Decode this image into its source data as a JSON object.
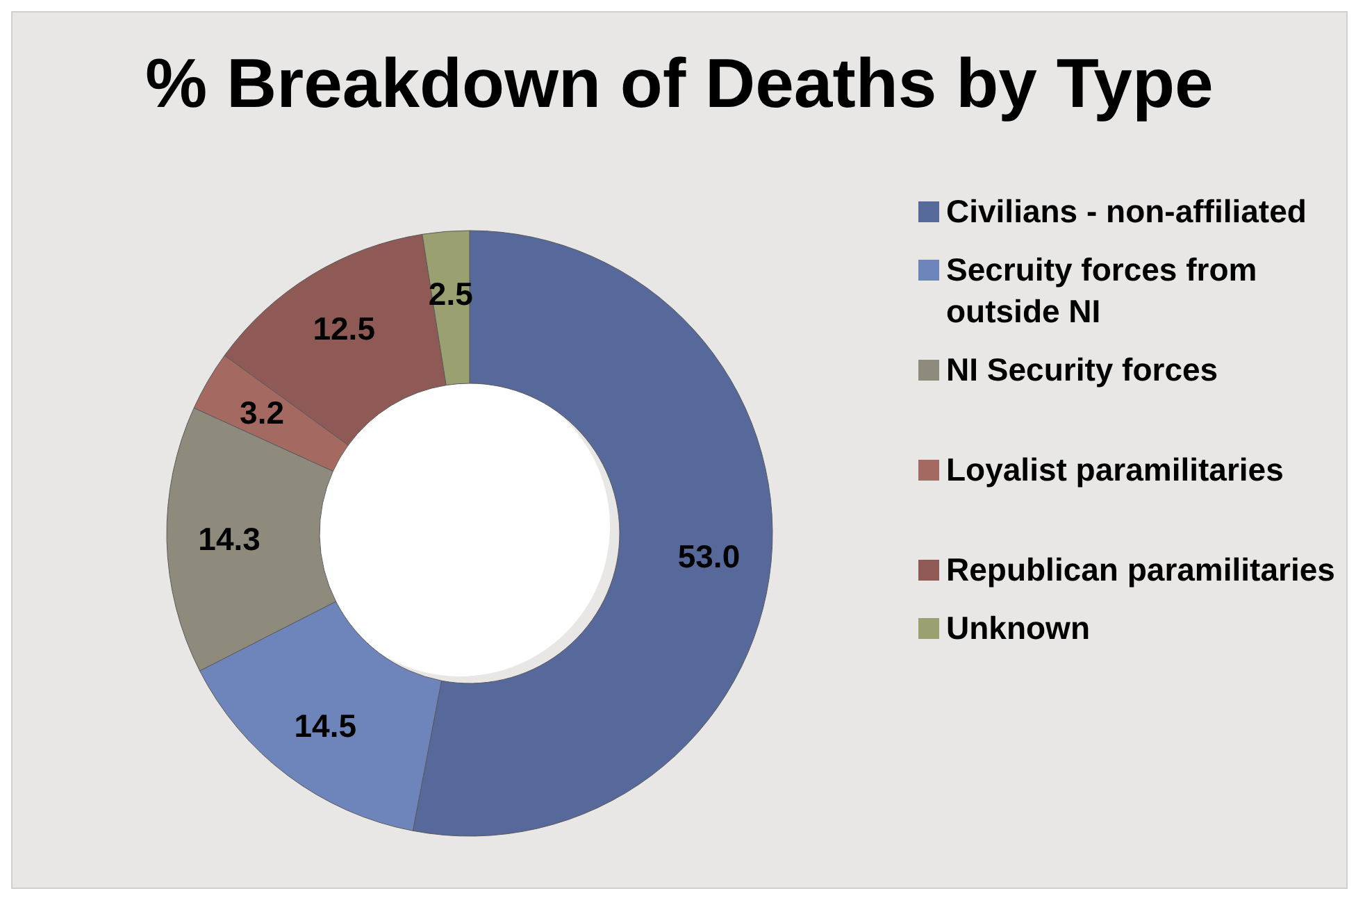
{
  "chart_data": {
    "type": "donut",
    "title": "% Breakdown of Deaths by Type",
    "categories": [
      "Civilians - non-affiliated",
      "Secruity forces from outside NI",
      "NI Security forces",
      "Loyalist paramilitaries",
      "Republican paramilitaries",
      "Unknown"
    ],
    "values": [
      53.0,
      14.5,
      14.3,
      3.2,
      12.5,
      2.5
    ],
    "colors": [
      "#56699a",
      "#6d85bb",
      "#8e8a7c",
      "#a46a62",
      "#8f5a55",
      "#9aa070"
    ],
    "value_labels": [
      "53.0",
      "14.5",
      "14.3",
      "3.2",
      "12.5",
      "2.5"
    ],
    "legend": "right"
  }
}
